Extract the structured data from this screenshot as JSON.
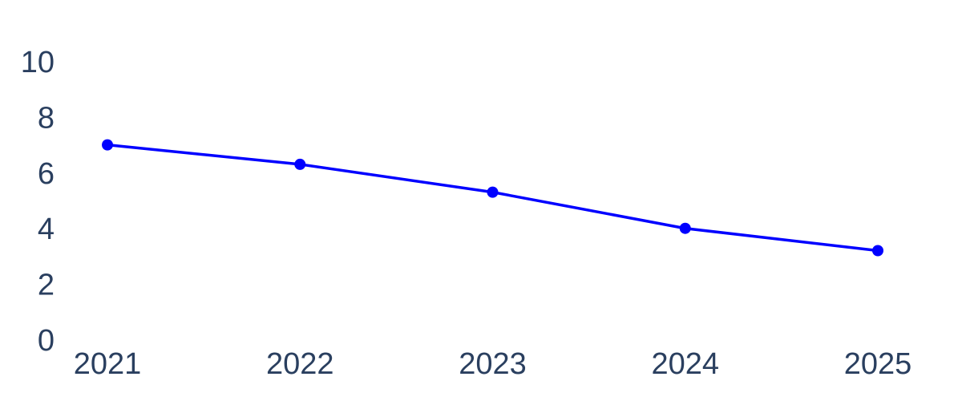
{
  "chart_data": {
    "type": "line",
    "categories": [
      "2021",
      "2022",
      "2023",
      "2024",
      "2025"
    ],
    "series": [
      {
        "color": "#0000ff",
        "values": [
          7.1,
          6.4,
          5.4,
          4.1,
          3.3
        ]
      }
    ],
    "ylim": [
      0,
      10
    ],
    "yticks": [
      0,
      2,
      4,
      6,
      8,
      10
    ],
    "grid": false
  }
}
